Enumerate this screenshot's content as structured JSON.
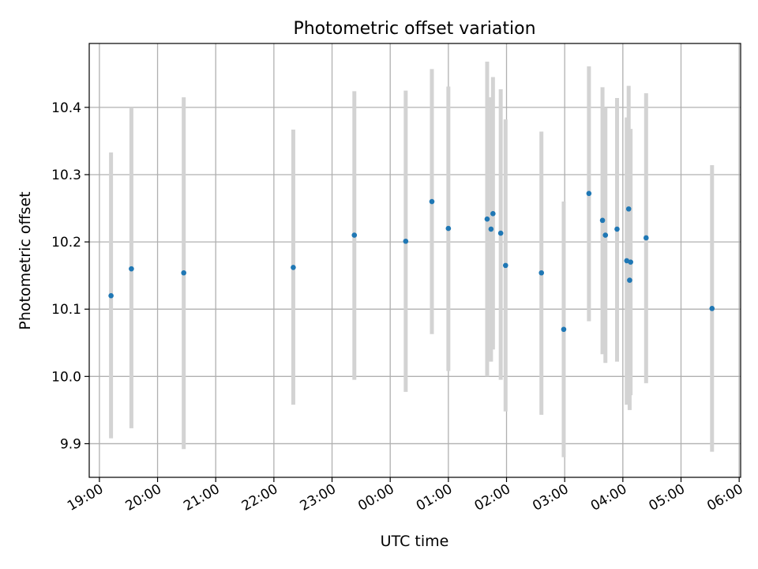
{
  "chart_data": {
    "type": "scatter",
    "title": "Photometric offset variation",
    "xlabel": "UTC time",
    "ylabel": "Photometric offset",
    "xlim": [
      "19:00",
      "06:00"
    ],
    "ylim": [
      9.85,
      10.495
    ],
    "x_ticks": [
      "19:00",
      "20:00",
      "21:00",
      "22:00",
      "23:00",
      "00:00",
      "01:00",
      "02:00",
      "03:00",
      "04:00",
      "05:00",
      "06:00"
    ],
    "y_ticks": [
      "9.9",
      "10.0",
      "10.1",
      "10.2",
      "10.3",
      "10.4"
    ],
    "grid": true,
    "colors": {
      "points": "#1f77b4",
      "error_bars": "#d3d3d3",
      "grid": "#b0b0b0"
    },
    "series": [
      {
        "points": [
          {
            "x": "19:12",
            "y": 10.12,
            "err_low": 9.908,
            "err_high": 10.333
          },
          {
            "x": "19:33",
            "y": 10.16,
            "err_low": 9.923,
            "err_high": 10.4
          },
          {
            "x": "20:27",
            "y": 10.154,
            "err_low": 9.892,
            "err_high": 10.415
          },
          {
            "x": "22:20",
            "y": 10.162,
            "err_low": 9.958,
            "err_high": 10.367
          },
          {
            "x": "23:23",
            "y": 10.21,
            "err_low": 9.995,
            "err_high": 10.424
          },
          {
            "x": "00:16",
            "y": 10.201,
            "err_low": 9.977,
            "err_high": 10.425
          },
          {
            "x": "00:43",
            "y": 10.26,
            "err_low": 10.063,
            "err_high": 10.457
          },
          {
            "x": "01:00",
            "y": 10.22,
            "err_low": 10.008,
            "err_high": 10.431
          },
          {
            "x": "01:40",
            "y": 10.234,
            "err_low": 10.0,
            "err_high": 10.468
          },
          {
            "x": "01:44",
            "y": 10.219,
            "err_low": 10.022,
            "err_high": 10.415
          },
          {
            "x": "01:46",
            "y": 10.242,
            "err_low": 10.04,
            "err_high": 10.445
          },
          {
            "x": "01:54",
            "y": 10.213,
            "err_low": 9.995,
            "err_high": 10.427
          },
          {
            "x": "01:59",
            "y": 10.165,
            "err_low": 9.948,
            "err_high": 10.382
          },
          {
            "x": "02:36",
            "y": 10.154,
            "err_low": 9.943,
            "err_high": 10.364
          },
          {
            "x": "02:59",
            "y": 10.07,
            "err_low": 9.88,
            "err_high": 10.26
          },
          {
            "x": "03:25",
            "y": 10.272,
            "err_low": 10.082,
            "err_high": 10.461
          },
          {
            "x": "03:39",
            "y": 10.232,
            "err_low": 10.033,
            "err_high": 10.43
          },
          {
            "x": "03:42",
            "y": 10.21,
            "err_low": 10.02,
            "err_high": 10.4
          },
          {
            "x": "03:54",
            "y": 10.219,
            "err_low": 10.022,
            "err_high": 10.414
          },
          {
            "x": "04:04",
            "y": 10.172,
            "err_low": 9.958,
            "err_high": 10.385
          },
          {
            "x": "04:06",
            "y": 10.249,
            "err_low": 10.066,
            "err_high": 10.432
          },
          {
            "x": "04:07",
            "y": 10.143,
            "err_low": 9.95,
            "err_high": 10.337
          },
          {
            "x": "04:08",
            "y": 10.17,
            "err_low": 9.972,
            "err_high": 10.368
          },
          {
            "x": "04:24",
            "y": 10.206,
            "err_low": 9.99,
            "err_high": 10.421
          },
          {
            "x": "05:32",
            "y": 10.101,
            "err_low": 9.888,
            "err_high": 10.314
          }
        ]
      }
    ]
  }
}
